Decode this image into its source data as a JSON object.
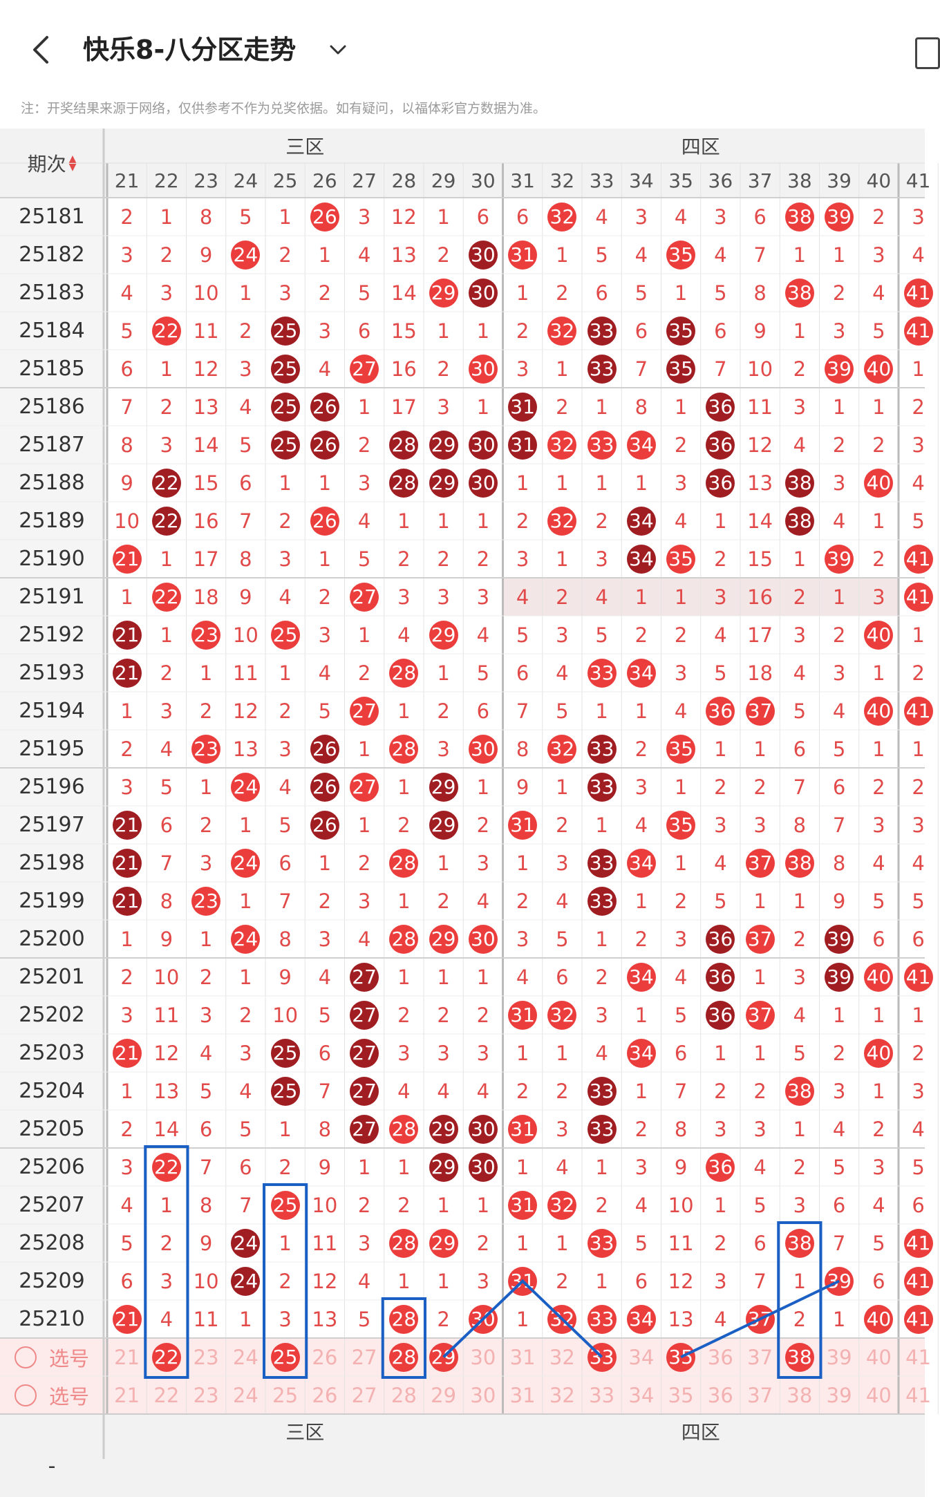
{
  "header": {
    "title": "快乐8-八分区走势",
    "back_icon": "chevron-left-icon",
    "dropdown_icon": "chevron-down-icon",
    "right_icon": "tablet-icon"
  },
  "note": "注：开奖结果来源于网络，仅供参考不作为兑奖依据。如有疑问，以福体彩官方数据为准。",
  "table": {
    "period_header": "期次",
    "zones": [
      "三区",
      "四区"
    ],
    "columns": [
      "21",
      "22",
      "23",
      "24",
      "25",
      "26",
      "27",
      "28",
      "29",
      "30",
      "31",
      "32",
      "33",
      "34",
      "35",
      "36",
      "37",
      "38",
      "39",
      "40",
      "41"
    ],
    "rows": [
      {
        "period": "25181",
        "cells": [
          "2",
          "1",
          "8",
          "5",
          "1",
          "26",
          "3",
          "12",
          "1",
          "6",
          "6",
          "32",
          "4",
          "3",
          "4",
          "3",
          "6",
          "38",
          "39",
          "2",
          "3"
        ]
      },
      {
        "period": "25182",
        "cells": [
          "3",
          "2",
          "9",
          "24",
          "2",
          "1",
          "4",
          "13",
          "2",
          "30",
          "31",
          "1",
          "5",
          "4",
          "35",
          "4",
          "7",
          "1",
          "1",
          "3",
          "4"
        ]
      },
      {
        "period": "25183",
        "cells": [
          "4",
          "3",
          "10",
          "1",
          "3",
          "2",
          "5",
          "14",
          "29",
          "30",
          "1",
          "2",
          "6",
          "5",
          "1",
          "5",
          "8",
          "38",
          "2",
          "4",
          "41"
        ]
      },
      {
        "period": "25184",
        "cells": [
          "5",
          "22",
          "11",
          "2",
          "25",
          "3",
          "6",
          "15",
          "1",
          "1",
          "2",
          "32",
          "33",
          "6",
          "35",
          "6",
          "9",
          "1",
          "3",
          "5",
          "41"
        ]
      },
      {
        "period": "25185",
        "cells": [
          "6",
          "1",
          "12",
          "3",
          "25",
          "4",
          "27",
          "16",
          "2",
          "30",
          "3",
          "1",
          "33",
          "7",
          "35",
          "7",
          "10",
          "2",
          "39",
          "40",
          "1"
        ]
      },
      {
        "period": "25186",
        "cells": [
          "7",
          "2",
          "13",
          "4",
          "25",
          "26",
          "1",
          "17",
          "3",
          "1",
          "31",
          "2",
          "1",
          "8",
          "1",
          "36",
          "11",
          "3",
          "1",
          "1",
          "2"
        ]
      },
      {
        "period": "25187",
        "cells": [
          "8",
          "3",
          "14",
          "5",
          "25",
          "26",
          "2",
          "28",
          "29",
          "30",
          "31",
          "32",
          "33",
          "34",
          "2",
          "36",
          "12",
          "4",
          "2",
          "2",
          "3"
        ]
      },
      {
        "period": "25188",
        "cells": [
          "9",
          "22",
          "15",
          "6",
          "1",
          "1",
          "3",
          "28",
          "29",
          "30",
          "1",
          "1",
          "1",
          "1",
          "3",
          "36",
          "13",
          "38",
          "3",
          "40",
          "4"
        ]
      },
      {
        "period": "25189",
        "cells": [
          "10",
          "22",
          "16",
          "7",
          "2",
          "26",
          "4",
          "1",
          "1",
          "1",
          "2",
          "32",
          "2",
          "34",
          "4",
          "1",
          "14",
          "38",
          "4",
          "1",
          "5"
        ]
      },
      {
        "period": "25190",
        "cells": [
          "21",
          "1",
          "17",
          "8",
          "3",
          "1",
          "5",
          "2",
          "2",
          "2",
          "3",
          "1",
          "3",
          "34",
          "35",
          "2",
          "15",
          "1",
          "39",
          "2",
          "41"
        ]
      },
      {
        "period": "25191",
        "cells": [
          "1",
          "22",
          "18",
          "9",
          "4",
          "2",
          "27",
          "3",
          "3",
          "3",
          "4",
          "2",
          "4",
          "1",
          "1",
          "3",
          "16",
          "2",
          "1",
          "3",
          "41"
        ]
      },
      {
        "period": "25192",
        "cells": [
          "21",
          "1",
          "23",
          "10",
          "25",
          "3",
          "1",
          "4",
          "29",
          "4",
          "5",
          "3",
          "5",
          "2",
          "2",
          "4",
          "17",
          "3",
          "2",
          "40",
          "1"
        ]
      },
      {
        "period": "25193",
        "cells": [
          "21",
          "2",
          "1",
          "11",
          "1",
          "4",
          "2",
          "28",
          "1",
          "5",
          "6",
          "4",
          "33",
          "34",
          "3",
          "5",
          "18",
          "4",
          "3",
          "1",
          "2"
        ]
      },
      {
        "period": "25194",
        "cells": [
          "1",
          "3",
          "2",
          "12",
          "2",
          "5",
          "27",
          "1",
          "2",
          "6",
          "7",
          "5",
          "1",
          "1",
          "4",
          "36",
          "37",
          "5",
          "4",
          "40",
          "41"
        ]
      },
      {
        "period": "25195",
        "cells": [
          "2",
          "4",
          "23",
          "13",
          "3",
          "26",
          "1",
          "28",
          "3",
          "30",
          "8",
          "32",
          "33",
          "2",
          "35",
          "1",
          "1",
          "6",
          "5",
          "1",
          "1"
        ]
      },
      {
        "period": "25196",
        "cells": [
          "3",
          "5",
          "1",
          "24",
          "4",
          "26",
          "27",
          "1",
          "29",
          "1",
          "9",
          "1",
          "33",
          "3",
          "1",
          "2",
          "2",
          "7",
          "6",
          "2",
          "2"
        ]
      },
      {
        "period": "25197",
        "cells": [
          "21",
          "6",
          "2",
          "1",
          "5",
          "26",
          "1",
          "2",
          "29",
          "2",
          "31",
          "2",
          "1",
          "4",
          "35",
          "3",
          "3",
          "8",
          "7",
          "3",
          "3"
        ]
      },
      {
        "period": "25198",
        "cells": [
          "21",
          "7",
          "3",
          "24",
          "6",
          "1",
          "2",
          "28",
          "1",
          "3",
          "1",
          "3",
          "33",
          "34",
          "1",
          "4",
          "37",
          "38",
          "8",
          "4",
          "4"
        ]
      },
      {
        "period": "25199",
        "cells": [
          "21",
          "8",
          "23",
          "1",
          "7",
          "2",
          "3",
          "1",
          "2",
          "4",
          "2",
          "4",
          "33",
          "1",
          "2",
          "5",
          "1",
          "1",
          "9",
          "5",
          "5"
        ]
      },
      {
        "period": "25200",
        "cells": [
          "1",
          "9",
          "1",
          "24",
          "8",
          "3",
          "4",
          "28",
          "29",
          "30",
          "3",
          "5",
          "1",
          "2",
          "3",
          "36",
          "37",
          "2",
          "39",
          "6",
          "6"
        ]
      },
      {
        "period": "25201",
        "cells": [
          "2",
          "10",
          "2",
          "1",
          "9",
          "4",
          "27",
          "1",
          "1",
          "1",
          "4",
          "6",
          "2",
          "34",
          "4",
          "36",
          "1",
          "3",
          "39",
          "40",
          "41"
        ]
      },
      {
        "period": "25202",
        "cells": [
          "3",
          "11",
          "3",
          "2",
          "10",
          "5",
          "27",
          "2",
          "2",
          "2",
          "31",
          "32",
          "3",
          "1",
          "5",
          "36",
          "37",
          "4",
          "1",
          "1",
          "1"
        ]
      },
      {
        "period": "25203",
        "cells": [
          "21",
          "12",
          "4",
          "3",
          "25",
          "6",
          "27",
          "3",
          "3",
          "3",
          "1",
          "1",
          "4",
          "34",
          "6",
          "1",
          "1",
          "5",
          "2",
          "40",
          "2"
        ]
      },
      {
        "period": "25204",
        "cells": [
          "1",
          "13",
          "5",
          "4",
          "25",
          "7",
          "27",
          "4",
          "4",
          "4",
          "2",
          "2",
          "33",
          "1",
          "7",
          "2",
          "2",
          "38",
          "3",
          "1",
          "3"
        ]
      },
      {
        "period": "25205",
        "cells": [
          "2",
          "14",
          "6",
          "5",
          "1",
          "8",
          "27",
          "28",
          "29",
          "30",
          "31",
          "3",
          "33",
          "2",
          "8",
          "3",
          "3",
          "1",
          "4",
          "2",
          "4"
        ]
      },
      {
        "period": "25206",
        "cells": [
          "3",
          "22",
          "7",
          "6",
          "2",
          "9",
          "1",
          "1",
          "29",
          "30",
          "1",
          "4",
          "1",
          "3",
          "9",
          "36",
          "4",
          "2",
          "5",
          "3",
          "5"
        ]
      },
      {
        "period": "25207",
        "cells": [
          "4",
          "1",
          "8",
          "7",
          "25",
          "10",
          "2",
          "2",
          "1",
          "1",
          "31",
          "32",
          "2",
          "4",
          "10",
          "1",
          "5",
          "3",
          "6",
          "4",
          "6"
        ]
      },
      {
        "period": "25208",
        "cells": [
          "5",
          "2",
          "9",
          "24",
          "1",
          "11",
          "3",
          "28",
          "29",
          "2",
          "1",
          "1",
          "33",
          "5",
          "11",
          "2",
          "6",
          "38",
          "7",
          "5",
          "41"
        ]
      },
      {
        "period": "25209",
        "cells": [
          "6",
          "3",
          "10",
          "24",
          "2",
          "12",
          "4",
          "1",
          "1",
          "3",
          "31",
          "2",
          "1",
          "6",
          "12",
          "3",
          "7",
          "1",
          "39",
          "6",
          "41"
        ]
      },
      {
        "period": "25210",
        "cells": [
          "21",
          "4",
          "11",
          "1",
          "3",
          "13",
          "5",
          "28",
          "2",
          "30",
          "1",
          "32",
          "33",
          "34",
          "13",
          "4",
          "37",
          "2",
          "1",
          "40",
          "41"
        ]
      }
    ],
    "select_label": "选号",
    "select_row1_selected": [
      "22",
      "25",
      "28",
      "29",
      "33",
      "35",
      "38"
    ],
    "select_row2_selected": []
  },
  "colors": {
    "accent": "#ec3d3d",
    "dark_ball": "#a01d22",
    "annotation": "#1a5fc4"
  }
}
